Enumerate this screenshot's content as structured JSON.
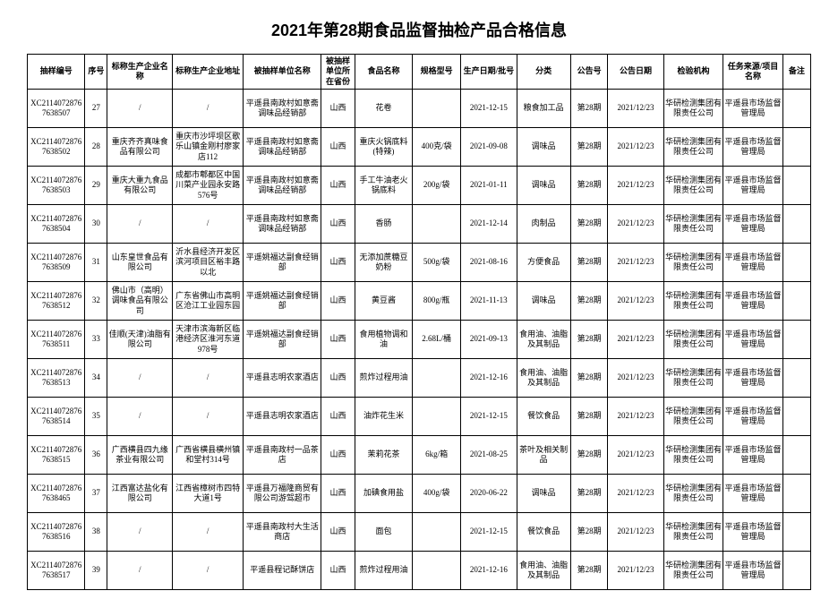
{
  "title": "2021年第28期食品监督抽检产品合格信息",
  "headers": {
    "id": "抽样编号",
    "idx": "序号",
    "company": "标称生产企业名称",
    "address": "标称生产企业地址",
    "sample_unit": "被抽样单位名称",
    "province": "被抽样单位所在省份",
    "food": "食品名称",
    "spec": "规格型号",
    "date": "生产日期/批号",
    "category": "分类",
    "notice_no": "公告号",
    "notice_date": "公告日期",
    "institution": "检验机构",
    "source": "任务来源/项目名称",
    "remark": "备注"
  },
  "rows": [
    {
      "id": "XC21140728767638507",
      "idx": "27",
      "company": "/",
      "address": "/",
      "sample_unit": "平遥县南政村如意斋调味品经销部",
      "province": "山西",
      "food": "花卷",
      "spec": "",
      "date": "2021-12-15",
      "category": "粮食加工品",
      "notice_no": "第28期",
      "notice_date": "2021/12/23",
      "institution": "华研检测集团有限责任公司",
      "source": "平遥县市场监督管理局",
      "remark": ""
    },
    {
      "id": "XC21140728767638502",
      "idx": "28",
      "company": "重庆齐齐真味食品有限公司",
      "address": "重庆市沙坪坝区歌乐山镇金刚村廖家店112",
      "sample_unit": "平遥县南政村如意斋调味品经销部",
      "province": "山西",
      "food": "重庆火锅底料(特辣)",
      "spec": "400克/袋",
      "date": "2021-09-08",
      "category": "调味品",
      "notice_no": "第28期",
      "notice_date": "2021/12/23",
      "institution": "华研检测集团有限责任公司",
      "source": "平遥县市场监督管理局",
      "remark": ""
    },
    {
      "id": "XC21140728767638503",
      "idx": "29",
      "company": "重庆大重九食品有限公司",
      "address": "成都市郫都区中国川菜产业园永安路576号",
      "sample_unit": "平遥县南政村如意斋调味品经销部",
      "province": "山西",
      "food": "手工牛油老火锅底料",
      "spec": "200g/袋",
      "date": "2021-01-11",
      "category": "调味品",
      "notice_no": "第28期",
      "notice_date": "2021/12/23",
      "institution": "华研检测集团有限责任公司",
      "source": "平遥县市场监督管理局",
      "remark": ""
    },
    {
      "id": "XC21140728767638504",
      "idx": "30",
      "company": "/",
      "address": "/",
      "sample_unit": "平遥县南政村如意斋调味品经销部",
      "province": "山西",
      "food": "香肠",
      "spec": "",
      "date": "2021-12-14",
      "category": "肉制品",
      "notice_no": "第28期",
      "notice_date": "2021/12/23",
      "institution": "华研检测集团有限责任公司",
      "source": "平遥县市场监督管理局",
      "remark": ""
    },
    {
      "id": "XC21140728767638509",
      "idx": "31",
      "company": "山东皇世食品有限公司",
      "address": "沂水县经济开发区滨河项目区裕丰路以北",
      "sample_unit": "平遥姚福达副食经销部",
      "province": "山西",
      "food": "无添加蔗糖豆奶粉",
      "spec": "500g/袋",
      "date": "2021-08-16",
      "category": "方便食品",
      "notice_no": "第28期",
      "notice_date": "2021/12/23",
      "institution": "华研检测集团有限责任公司",
      "source": "平遥县市场监督管理局",
      "remark": ""
    },
    {
      "id": "XC21140728767638512",
      "idx": "32",
      "company": "佛山市（高明）调味食品有限公司",
      "address": "广东省佛山市高明区沧江工业园东园",
      "sample_unit": "平遥姚福达副食经销部",
      "province": "山西",
      "food": "黄豆酱",
      "spec": "800g/瓶",
      "date": "2021-11-13",
      "category": "调味品",
      "notice_no": "第28期",
      "notice_date": "2021/12/23",
      "institution": "华研检测集团有限责任公司",
      "source": "平遥县市场监督管理局",
      "remark": ""
    },
    {
      "id": "XC21140728767638511",
      "idx": "33",
      "company": "佳顺(天津)油脂有限公司",
      "address": "天津市滨海新区临港经济区淮河东道978号",
      "sample_unit": "平遥姚福达副食经销部",
      "province": "山西",
      "food": "食用植物调和油",
      "spec": "2.68L/桶",
      "date": "2021-09-13",
      "category": "食用油、油脂及其制品",
      "notice_no": "第28期",
      "notice_date": "2021/12/23",
      "institution": "华研检测集团有限责任公司",
      "source": "平遥县市场监督管理局",
      "remark": ""
    },
    {
      "id": "XC21140728767638513",
      "idx": "34",
      "company": "/",
      "address": "/",
      "sample_unit": "平遥县志明农家酒店",
      "province": "山西",
      "food": "煎炸过程用油",
      "spec": "",
      "date": "2021-12-16",
      "category": "食用油、油脂及其制品",
      "notice_no": "第28期",
      "notice_date": "2021/12/23",
      "institution": "华研检测集团有限责任公司",
      "source": "平遥县市场监督管理局",
      "remark": ""
    },
    {
      "id": "XC21140728767638514",
      "idx": "35",
      "company": "/",
      "address": "/",
      "sample_unit": "平遥县志明农家酒店",
      "province": "山西",
      "food": "油炸花生米",
      "spec": "",
      "date": "2021-12-15",
      "category": "餐饮食品",
      "notice_no": "第28期",
      "notice_date": "2021/12/23",
      "institution": "华研检测集团有限责任公司",
      "source": "平遥县市场监督管理局",
      "remark": ""
    },
    {
      "id": "XC21140728767638515",
      "idx": "36",
      "company": "广西横县四九缘茶业有限公司",
      "address": "广西省横县横州镇和堂村314号",
      "sample_unit": "平遥县南政村一品茶店",
      "province": "山西",
      "food": "茉莉花茶",
      "spec": "6kg/箱",
      "date": "2021-08-25",
      "category": "茶叶及相关制品",
      "notice_no": "第28期",
      "notice_date": "2021/12/23",
      "institution": "华研检测集团有限责任公司",
      "source": "平遥县市场监督管理局",
      "remark": ""
    },
    {
      "id": "XC21140728767638465",
      "idx": "37",
      "company": "江西富达盐化有限公司",
      "address": "江西省樟树市四特大道1号",
      "sample_unit": "平遥县万福隆商贸有限公司游驾超市",
      "province": "山西",
      "food": "加碘食用盐",
      "spec": "400g/袋",
      "date": "2020-06-22",
      "category": "调味品",
      "notice_no": "第28期",
      "notice_date": "2021/12/23",
      "institution": "华研检测集团有限责任公司",
      "source": "平遥县市场监督管理局",
      "remark": ""
    },
    {
      "id": "XC21140728767638516",
      "idx": "38",
      "company": "/",
      "address": "/",
      "sample_unit": "平遥县南政村大生活商店",
      "province": "山西",
      "food": "面包",
      "spec": "",
      "date": "2021-12-15",
      "category": "餐饮食品",
      "notice_no": "第28期",
      "notice_date": "2021/12/23",
      "institution": "华研检测集团有限责任公司",
      "source": "平遥县市场监督管理局",
      "remark": ""
    },
    {
      "id": "XC21140728767638517",
      "idx": "39",
      "company": "/",
      "address": "/",
      "sample_unit": "平遥县程记酥饼店",
      "province": "山西",
      "food": "煎炸过程用油",
      "spec": "",
      "date": "2021-12-16",
      "category": "食用油、油脂及其制品",
      "notice_no": "第28期",
      "notice_date": "2021/12/23",
      "institution": "华研检测集团有限责任公司",
      "source": "平遥县市场监督管理局",
      "remark": ""
    }
  ]
}
